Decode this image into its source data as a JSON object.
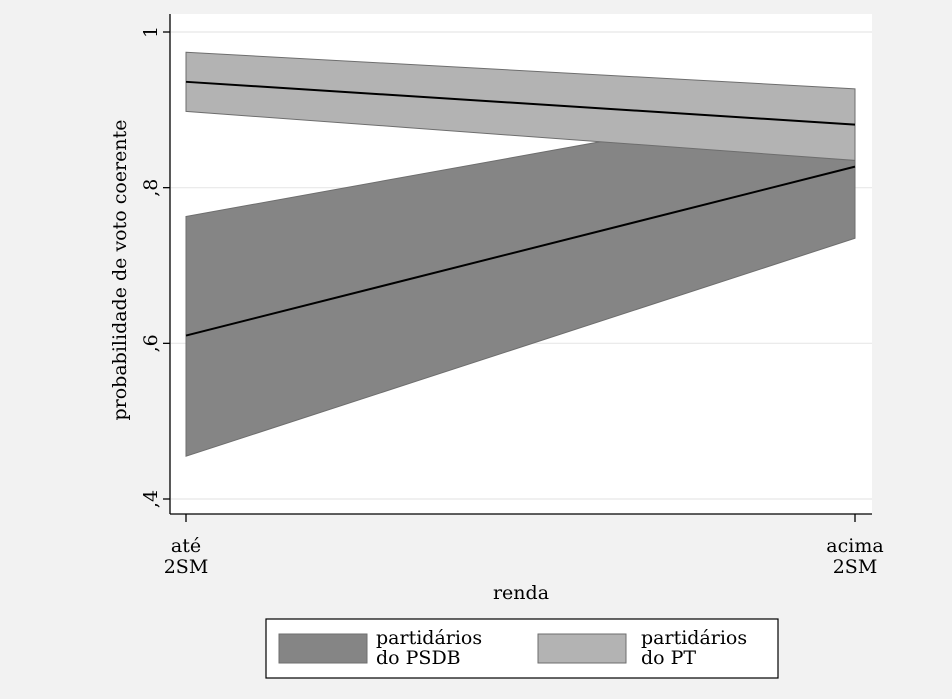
{
  "chart_data": {
    "type": "line",
    "xlabel": "renda",
    "ylabel": "probabilidade de voto coerente",
    "categories": [
      {
        "lines": [
          "até",
          "2SM"
        ]
      },
      {
        "lines": [
          "acima",
          "2SM"
        ]
      }
    ],
    "ylim": [
      0.4,
      1.0
    ],
    "yticks": [
      {
        "value": 0.4,
        "label": ",4"
      },
      {
        "value": 0.6,
        "label": ",6"
      },
      {
        "value": 0.8,
        "label": ",8"
      },
      {
        "value": 1.0,
        "label": "1"
      }
    ],
    "grid": true,
    "legend_position": "bottom",
    "series": [
      {
        "name": "partidários do PSDB",
        "legend_lines": [
          "partidários",
          "do PSDB"
        ],
        "fill": "#858585",
        "values": [
          0.61,
          0.827
        ],
        "lower": [
          0.455,
          0.735
        ],
        "upper": [
          0.763,
          0.918
        ]
      },
      {
        "name": "partidários do PT",
        "legend_lines": [
          "partidários",
          "do PT"
        ],
        "fill": "#b3b3b3",
        "values": [
          0.936,
          0.881
        ],
        "lower": [
          0.898,
          0.835
        ],
        "upper": [
          0.974,
          0.927
        ]
      }
    ]
  }
}
